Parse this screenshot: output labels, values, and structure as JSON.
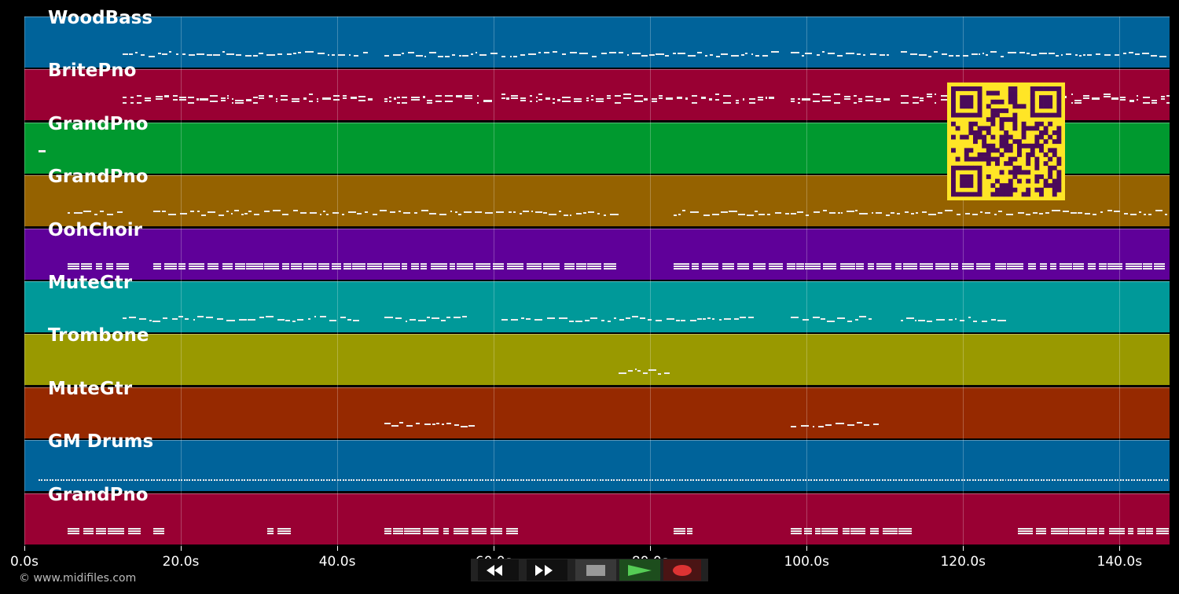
{
  "tracks": [
    {
      "name": "WoodBass",
      "color": "#00639a",
      "regions": [
        [
          12.6,
          44
        ],
        [
          46,
          60
        ],
        [
          61,
          96
        ],
        [
          98,
          111
        ],
        [
          112,
          146
        ]
      ],
      "style": "line"
    },
    {
      "name": "BritePno",
      "color": "#990033",
      "regions": [
        [
          12.6,
          44
        ],
        [
          46,
          60
        ],
        [
          61,
          96
        ],
        [
          98,
          111
        ],
        [
          112,
          146
        ]
      ],
      "style": "chord"
    },
    {
      "name": "GrandPno",
      "color": "#00992f",
      "regions": [
        [
          1.8,
          2.2
        ]
      ],
      "style": "chord"
    },
    {
      "name": "GrandPno",
      "color": "#956200",
      "regions": [
        [
          5.5,
          12
        ],
        [
          16.5,
          75
        ],
        [
          83,
          146
        ]
      ],
      "style": "line"
    },
    {
      "name": "OohChoir",
      "color": "#5f0099",
      "regions": [
        [
          5.5,
          12
        ],
        [
          16.5,
          75
        ],
        [
          83,
          146
        ]
      ],
      "style": "block"
    },
    {
      "name": "MuteGtr",
      "color": "#009999",
      "regions": [
        [
          12.6,
          42
        ],
        [
          46,
          56
        ],
        [
          61,
          93
        ],
        [
          98,
          108
        ],
        [
          112,
          126
        ]
      ],
      "style": "line"
    },
    {
      "name": "Trombone",
      "color": "#999900",
      "regions": [
        [
          76,
          82
        ]
      ],
      "style": "line"
    },
    {
      "name": "MuteGtr",
      "color": "#962900",
      "regions": [
        [
          46,
          57
        ],
        [
          98,
          109
        ]
      ],
      "style": "line"
    },
    {
      "name": "GM Drums",
      "color": "#00639a",
      "regions": [
        [
          1.8,
          146
        ]
      ],
      "style": "drum"
    },
    {
      "name": "GrandPno",
      "color": "#990033",
      "regions": [
        [
          5.5,
          15
        ],
        [
          16.5,
          18
        ],
        [
          31,
          33
        ],
        [
          46,
          62
        ],
        [
          83,
          85
        ],
        [
          98,
          112
        ],
        [
          127,
          146
        ]
      ],
      "style": "block"
    }
  ],
  "axis": {
    "max_seconds": 146.4,
    "ticks": [
      {
        "value": 0,
        "label": "0.0s"
      },
      {
        "value": 20,
        "label": "20.0s"
      },
      {
        "value": 40,
        "label": "40.0s"
      },
      {
        "value": 60,
        "label": "60.0s"
      },
      {
        "value": 80,
        "label": "80.0s"
      },
      {
        "value": 100,
        "label": "100.0s"
      },
      {
        "value": 120,
        "label": "120.0s"
      },
      {
        "value": 140,
        "label": "140.0s"
      }
    ]
  },
  "copyright": "© www.midifiles.com",
  "controls": {
    "rewind": "rewind-icon",
    "forward": "fast-forward-icon",
    "stop": "stop-icon",
    "play": "play-icon",
    "record": "record-icon"
  }
}
